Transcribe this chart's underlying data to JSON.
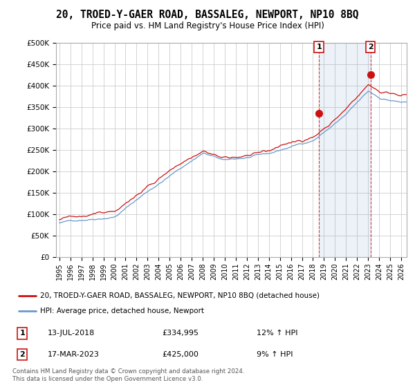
{
  "title": "20, TROED-Y-GAER ROAD, BASSALEG, NEWPORT, NP10 8BQ",
  "subtitle": "Price paid vs. HM Land Registry's House Price Index (HPI)",
  "hpi_color": "#6699cc",
  "price_color": "#cc1111",
  "sale1_label": "1",
  "sale2_label": "2",
  "legend_line1": "20, TROED-Y-GAER ROAD, BASSALEG, NEWPORT, NP10 8BQ (detached house)",
  "legend_line2": "HPI: Average price, detached house, Newport",
  "footnote": "Contains HM Land Registry data © Crown copyright and database right 2024.\nThis data is licensed under the Open Government Licence v3.0.",
  "background_color": "#ffffff",
  "grid_color": "#cccccc",
  "chart_bg": "#ffffff",
  "sale1_year_f": 2018.54,
  "sale1_price": 334995,
  "sale2_year_f": 2023.21,
  "sale2_price": 425000,
  "sale1_info_date": "13-JUL-2018",
  "sale1_info_price": "£334,995",
  "sale1_info_hpi": "12% ↑ HPI",
  "sale2_info_date": "17-MAR-2023",
  "sale2_info_price": "£425,000",
  "sale2_info_hpi": "9% ↑ HPI",
  "ytick_labels": [
    "£0",
    "£50K",
    "£100K",
    "£150K",
    "£200K",
    "£250K",
    "£300K",
    "£350K",
    "£400K",
    "£450K",
    "£500K"
  ],
  "ytick_values": [
    0,
    50000,
    100000,
    150000,
    200000,
    250000,
    300000,
    350000,
    400000,
    450000,
    500000
  ]
}
